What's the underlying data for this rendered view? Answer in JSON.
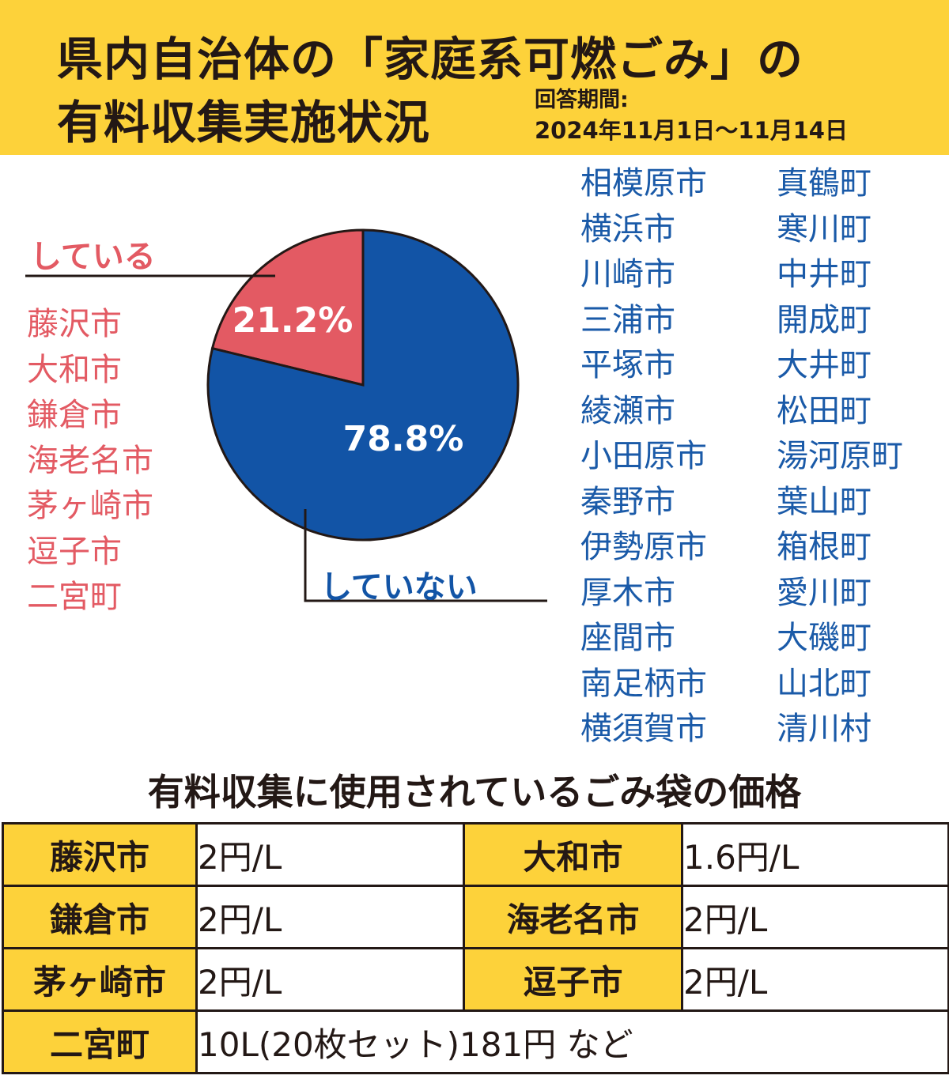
{
  "header": {
    "title_line1": "県内自治体の「家庭系可燃ごみ」の",
    "title_line2": "有料収集実施状況",
    "period_label": "回答期間:",
    "period_value": "2024年11月1日〜11月14日"
  },
  "chart_data": {
    "type": "pie",
    "slices": [
      {
        "label": "している",
        "value": 21.2,
        "display": "21.2%",
        "color": "#e35a63"
      },
      {
        "label": "していない",
        "value": 78.8,
        "display": "78.8%",
        "color": "#1254a6"
      }
    ]
  },
  "municipalities_yes": [
    "藤沢市",
    "大和市",
    "鎌倉市",
    "海老名市",
    "茅ヶ崎市",
    "逗子市",
    "二宮町"
  ],
  "municipalities_no_col1": [
    "相模原市",
    "横浜市",
    "川崎市",
    "三浦市",
    "平塚市",
    "綾瀬市",
    "小田原市",
    "秦野市",
    "伊勢原市",
    "厚木市",
    "座間市",
    "南足柄市",
    "横須賀市"
  ],
  "municipalities_no_col2": [
    "真鶴町",
    "寒川町",
    "中井町",
    "開成町",
    "大井町",
    "松田町",
    "湯河原町",
    "葉山町",
    "箱根町",
    "愛川町",
    "大磯町",
    "山北町",
    "清川村"
  ],
  "price_table": {
    "title": "有料収集に使用されているごみ袋の価格",
    "rows": [
      [
        {
          "city": "藤沢市",
          "price": "2円/L"
        },
        {
          "city": "大和市",
          "price": "1.6円/L"
        }
      ],
      [
        {
          "city": "鎌倉市",
          "price": "2円/L"
        },
        {
          "city": "海老名市",
          "price": "2円/L"
        }
      ],
      [
        {
          "city": "茅ヶ崎市",
          "price": "2円/L"
        },
        {
          "city": "逗子市",
          "price": "2円/L"
        }
      ],
      [
        {
          "city": "二宮町",
          "price": "10L(20枚セット)181円 など"
        }
      ]
    ]
  }
}
